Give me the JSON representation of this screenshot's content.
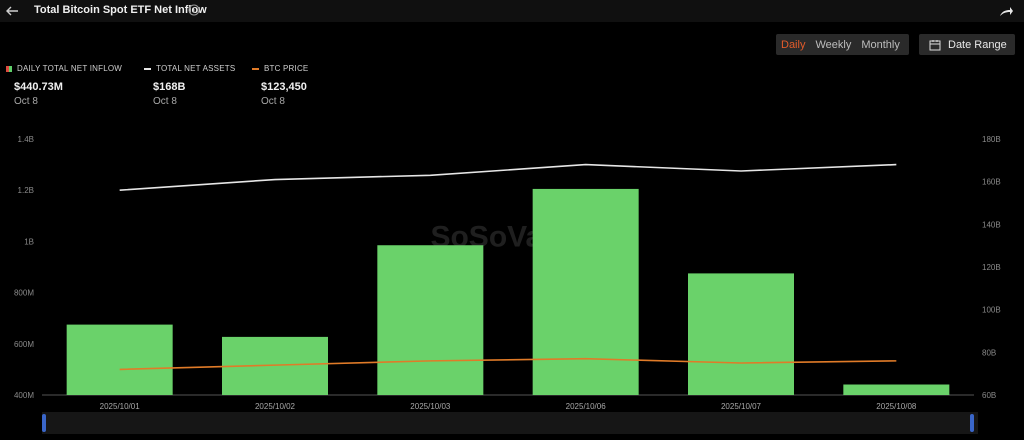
{
  "header": {
    "title": "Total Bitcoin Spot ETF Net Inflow"
  },
  "tabs": [
    {
      "label": "Daily",
      "active": true
    },
    {
      "label": "Weekly",
      "active": false
    },
    {
      "label": "Monthly",
      "active": false
    }
  ],
  "date_range_label": "Date Range",
  "legend": [
    {
      "label": "DAILY TOTAL NET INFLOW",
      "value": "$440.73M",
      "date": "Oct 8"
    },
    {
      "label": "TOTAL NET ASSETS",
      "value": "$168B",
      "date": "Oct 8"
    },
    {
      "label": "BTC PRICE",
      "value": "$123,450",
      "date": "Oct 8"
    }
  ],
  "colors": {
    "bar": "#6ad26a",
    "assets_line": "#e6e6e6",
    "price_line": "#e07b28",
    "accent": "#e25b2a"
  },
  "chart_data": {
    "type": "bar",
    "categories": [
      "2025/10/01",
      "2025/10/02",
      "2025/10/03",
      "2025/10/06",
      "2025/10/07",
      "2025/10/08"
    ],
    "series": [
      {
        "name": "DAILY TOTAL NET INFLOW",
        "type": "bar",
        "axis": "left",
        "values": [
          675000000,
          627000000,
          985000000,
          1205000000,
          875000000,
          441000000
        ]
      },
      {
        "name": "TOTAL NET ASSETS",
        "type": "line",
        "axis": "right",
        "values": [
          156,
          161,
          163,
          168,
          165,
          168
        ]
      },
      {
        "name": "BTC PRICE",
        "type": "line",
        "axis": "right",
        "values": [
          72,
          74,
          76,
          77,
          75,
          76
        ]
      }
    ],
    "y_left": {
      "range": [
        400000000,
        1400000000
      ],
      "ticks": [
        "400M",
        "600M",
        "800M",
        "1B",
        "1.2B",
        "1.4B"
      ]
    },
    "y_right": {
      "range": [
        60,
        180
      ],
      "ticks": [
        "60B",
        "80B",
        "100B",
        "120B",
        "140B",
        "160B",
        "180B"
      ]
    },
    "legend_position": "top-left",
    "grid": false
  }
}
